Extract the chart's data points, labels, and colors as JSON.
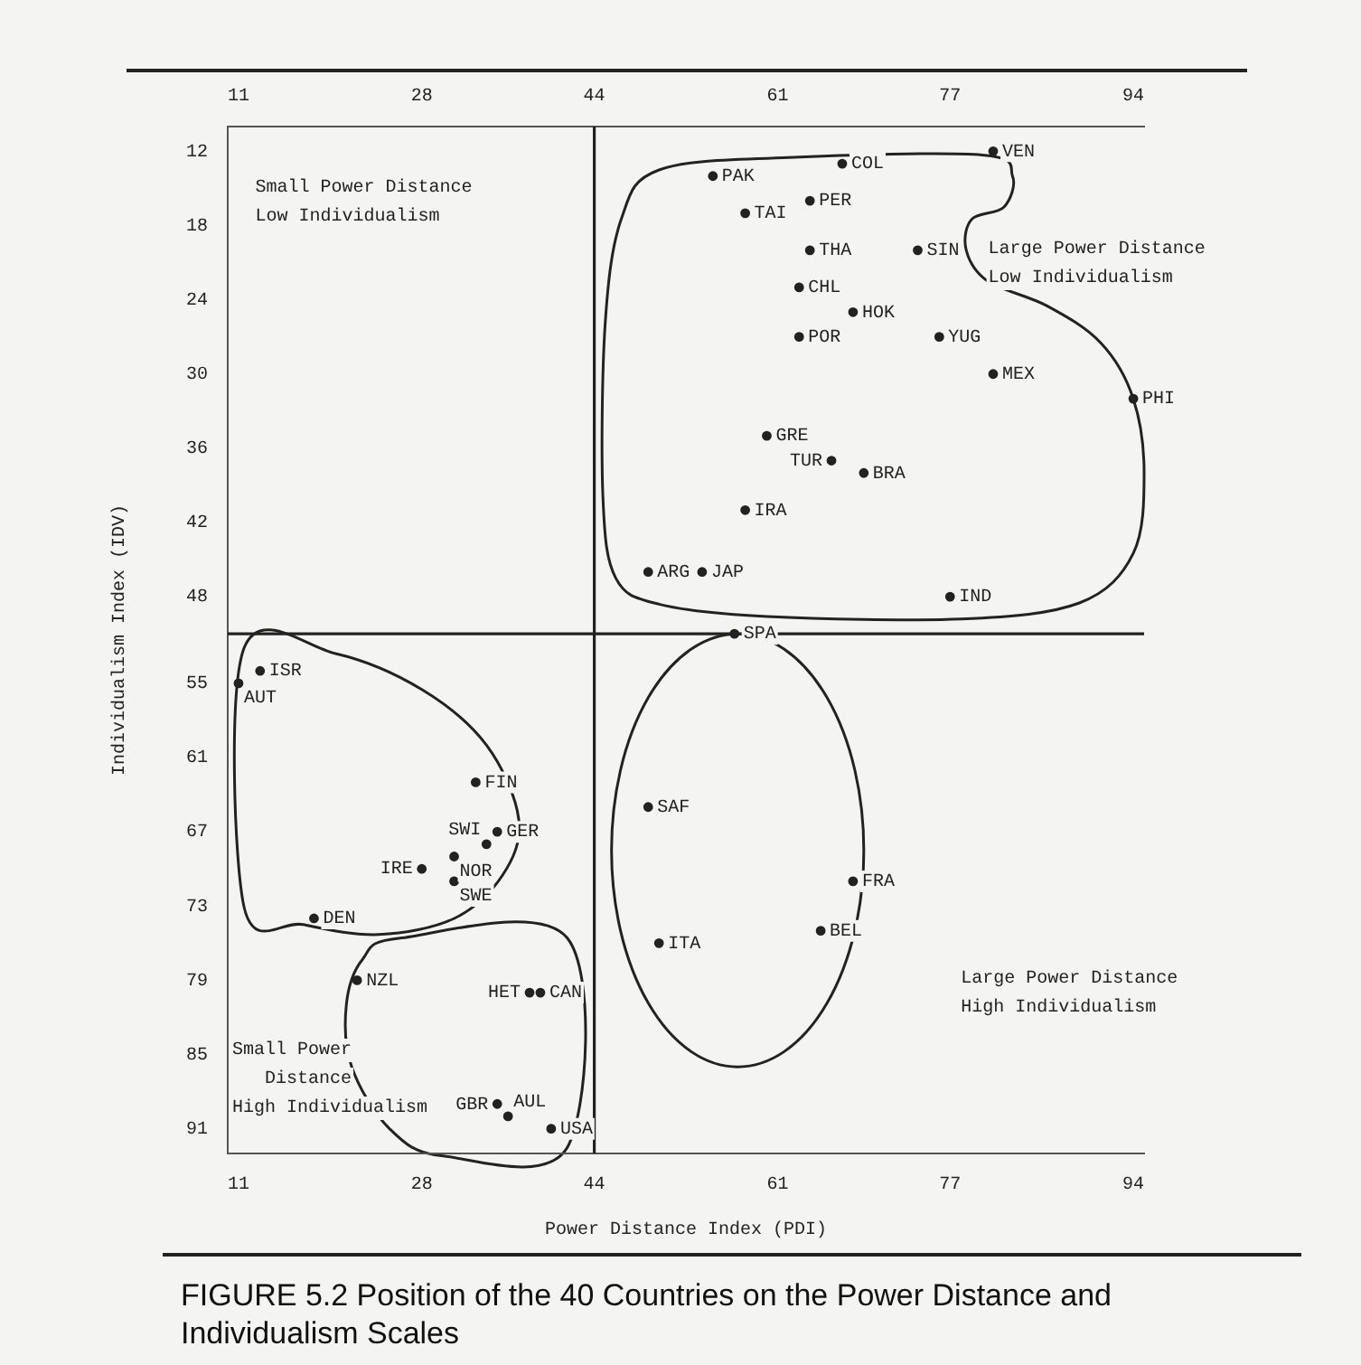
{
  "chart_data": {
    "type": "scatter",
    "title": "FIGURE 5.2 Position of the 40 Countries on the Power Distance and Individualism Scales",
    "xlabel": "Power Distance Index (PDI)",
    "ylabel": "Individualism Index (IDV)",
    "xlim": [
      10,
      95
    ],
    "xticks": [
      11,
      28,
      44,
      61,
      77,
      94
    ],
    "x2lim": [
      10,
      95
    ],
    "x2ticks": [
      11,
      28,
      44,
      61,
      77,
      94
    ],
    "ylim": [
      93,
      10
    ],
    "yticks": [
      12,
      18,
      24,
      30,
      36,
      42,
      48,
      55,
      61,
      67,
      73,
      79,
      85,
      91
    ],
    "grid": false,
    "legend": false,
    "marker": "circle",
    "ref_lines": [
      {
        "axis": "x",
        "value": 44
      },
      {
        "axis": "y",
        "value": 51
      }
    ],
    "annotations": [
      "Small Power Distance\nLow Individualism",
      "Large Power Distance\nLow Individualism",
      "Large Power Distance\nHigh Individualism",
      "Small Power\n   Distance\nHigh Individualism"
    ],
    "series": [
      {
        "type": "scatter",
        "color": "#222222",
        "x": [
          49,
          36,
          11,
          65,
          69,
          39,
          63,
          67,
          18,
          33,
          68,
          35,
          35,
          60,
          68,
          77,
          58,
          28,
          13,
          50,
          54,
          81,
          38,
          31,
          22,
          55,
          64,
          94,
          63,
          49,
          74,
          57,
          31,
          34,
          58,
          64,
          66,
          40,
          81,
          76
        ],
        "values": [
          46,
          90,
          55,
          75,
          38,
          80,
          23,
          13,
          74,
          63,
          71,
          89,
          67,
          35,
          25,
          48,
          41,
          70,
          54,
          76,
          46,
          30,
          80,
          69,
          79,
          14,
          16,
          32,
          27,
          65,
          20,
          51,
          71,
          68,
          17,
          20,
          37,
          91,
          12,
          27
        ],
        "value_labels": [
          "ARG",
          "AUL",
          "AUT",
          "BEL",
          "BRA",
          "CAN",
          "CHL",
          "COL",
          "DEN",
          "FIN",
          "FRA",
          "GBR",
          "GER",
          "GRE",
          "HOK",
          "IND",
          "IRA",
          "IRE",
          "ISR",
          "ITA",
          "JAP",
          "MEX",
          "HET",
          "NOR",
          "NZL",
          "PAK",
          "PER",
          "PHI",
          "POR",
          "SAF",
          "SIN",
          "SPA",
          "SWE",
          "SWI",
          "TAI",
          "THA",
          "TUR",
          "USA",
          "VEN",
          "YUG"
        ]
      }
    ]
  }
}
